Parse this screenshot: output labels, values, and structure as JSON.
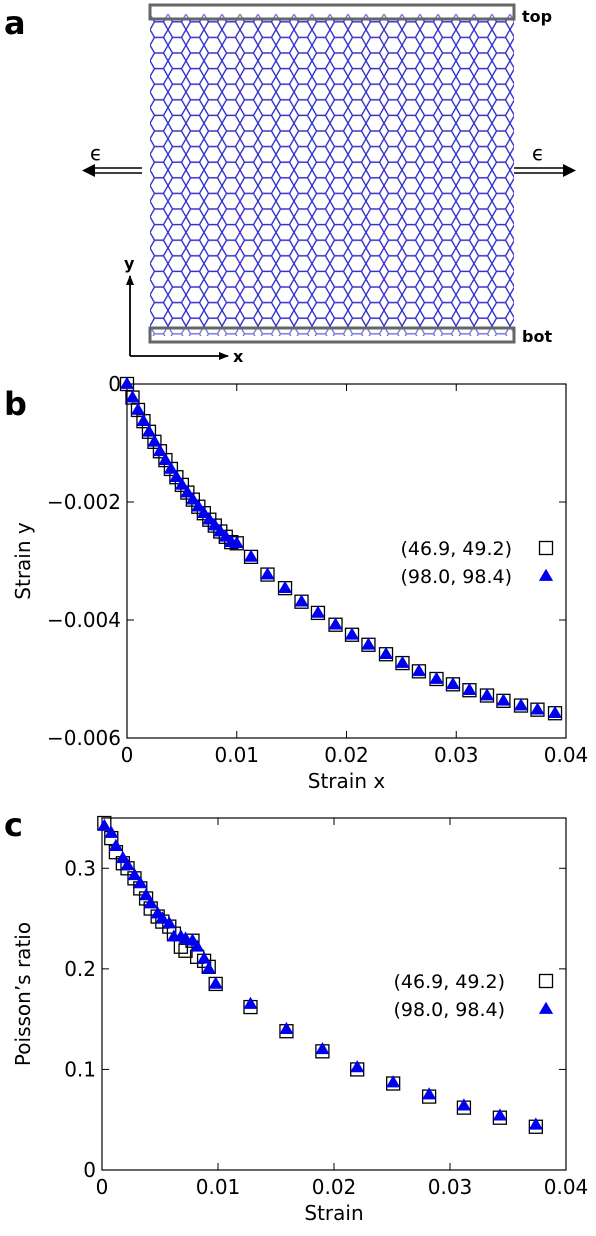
{
  "panels": {
    "a": {
      "letter": "a",
      "top_label": "top",
      "bot_label": "bot",
      "strain_symbol": "ϵ",
      "axis_x": "x",
      "axis_y": "y",
      "colors": {
        "lattice": "#3333cc",
        "plate": "#666666"
      }
    },
    "b": {
      "letter": "b"
    },
    "c": {
      "letter": "c"
    }
  },
  "chart_data": [
    {
      "type": "scatter",
      "panel": "b",
      "xlabel": "Strain x",
      "ylabel": "Strain y",
      "xlim": [
        0,
        0.04
      ],
      "ylim": [
        -0.006,
        0
      ],
      "xticks": [
        0,
        0.01,
        0.02,
        0.03,
        0.04
      ],
      "xtick_labels": [
        "0",
        "0.01",
        "0.02",
        "0.03",
        "0.04"
      ],
      "yticks": [
        0,
        -0.002,
        -0.004,
        -0.006
      ],
      "ytick_labels": [
        "0",
        "−0.002",
        "−0.004",
        "−0.006"
      ],
      "legend_position": "right",
      "series": [
        {
          "name": "(46.9, 49.2)",
          "marker": "open-square",
          "color": "#000000",
          "x": [
            0,
            0.0005,
            0.001,
            0.0015,
            0.002,
            0.0025,
            0.003,
            0.0035,
            0.004,
            0.0045,
            0.005,
            0.0055,
            0.006,
            0.0065,
            0.007,
            0.0075,
            0.008,
            0.0085,
            0.009,
            0.0095,
            0.01,
            0.0113,
            0.0128,
            0.0144,
            0.0159,
            0.0174,
            0.019,
            0.0205,
            0.022,
            0.0236,
            0.0251,
            0.0266,
            0.0282,
            0.0297,
            0.0312,
            0.0328,
            0.0343,
            0.0359,
            0.0374,
            0.039
          ],
          "y": [
            0,
            -0.00023,
            -0.00044,
            -0.00063,
            -0.00081,
            -0.00098,
            -0.00114,
            -0.00129,
            -0.00144,
            -0.00158,
            -0.00171,
            -0.00184,
            -0.00196,
            -0.00208,
            -0.00219,
            -0.0023,
            -0.0024,
            -0.0025,
            -0.00259,
            -0.00268,
            -0.0027,
            -0.00293,
            -0.00323,
            -0.00346,
            -0.00369,
            -0.00388,
            -0.00408,
            -0.00425,
            -0.00442,
            -0.00458,
            -0.00473,
            -0.00487,
            -0.005,
            -0.00509,
            -0.00519,
            -0.00528,
            -0.00537,
            -0.00545,
            -0.00552,
            -0.00558
          ]
        },
        {
          "name": "(98.0, 98.4)",
          "marker": "filled-triangle",
          "color": "#0000ee",
          "x": [
            0,
            0.0005,
            0.001,
            0.0015,
            0.002,
            0.0025,
            0.003,
            0.0035,
            0.004,
            0.0045,
            0.005,
            0.0055,
            0.006,
            0.0065,
            0.007,
            0.0075,
            0.008,
            0.0085,
            0.009,
            0.0095,
            0.01,
            0.0113,
            0.0128,
            0.0144,
            0.0159,
            0.0174,
            0.019,
            0.0205,
            0.022,
            0.0236,
            0.0251,
            0.0266,
            0.0282,
            0.0297,
            0.0312,
            0.0328,
            0.0343,
            0.0359,
            0.0374,
            0.039
          ],
          "y": [
            0,
            -0.00023,
            -0.00044,
            -0.00063,
            -0.00081,
            -0.00098,
            -0.00114,
            -0.00129,
            -0.00144,
            -0.00158,
            -0.00171,
            -0.00184,
            -0.00196,
            -0.00208,
            -0.00219,
            -0.0023,
            -0.0024,
            -0.0025,
            -0.00259,
            -0.00268,
            -0.0027,
            -0.00293,
            -0.00323,
            -0.00346,
            -0.00369,
            -0.00388,
            -0.00408,
            -0.00425,
            -0.00442,
            -0.00458,
            -0.00473,
            -0.00487,
            -0.005,
            -0.00509,
            -0.00519,
            -0.00528,
            -0.00537,
            -0.00545,
            -0.00552,
            -0.00558
          ]
        }
      ]
    },
    {
      "type": "scatter",
      "panel": "c",
      "xlabel": "Strain",
      "ylabel": "Poisson’s ratio",
      "xlim": [
        0,
        0.04
      ],
      "ylim": [
        0,
        0.35
      ],
      "xticks": [
        0,
        0.01,
        0.02,
        0.03,
        0.04
      ],
      "xtick_labels": [
        "0",
        "0.01",
        "0.02",
        "0.03",
        "0.04"
      ],
      "yticks": [
        0,
        0.1,
        0.2,
        0.3
      ],
      "ytick_labels": [
        "0",
        "0.1",
        "0.2",
        "0.3"
      ],
      "legend_position": "right",
      "series": [
        {
          "name": "(46.9, 49.2)",
          "marker": "open-square",
          "color": "#000000",
          "x": [
            0.0002,
            0.0008,
            0.0012,
            0.0018,
            0.0022,
            0.0028,
            0.0033,
            0.0038,
            0.0042,
            0.0048,
            0.0052,
            0.0058,
            0.0062,
            0.0068,
            0.0072,
            0.0078,
            0.0082,
            0.0088,
            0.0092,
            0.0098,
            0.0128,
            0.0159,
            0.019,
            0.022,
            0.0251,
            0.0282,
            0.0312,
            0.0343,
            0.0374
          ],
          "y": [
            0.345,
            0.33,
            0.316,
            0.305,
            0.3,
            0.29,
            0.28,
            0.27,
            0.26,
            0.252,
            0.247,
            0.242,
            0.235,
            0.222,
            0.218,
            0.228,
            0.212,
            0.208,
            0.202,
            0.185,
            0.162,
            0.138,
            0.118,
            0.1,
            0.086,
            0.073,
            0.062,
            0.052,
            0.043
          ]
        },
        {
          "name": "(98.0, 98.4)",
          "marker": "filled-triangle",
          "color": "#0000ee",
          "x": [
            0.0002,
            0.0008,
            0.0012,
            0.0018,
            0.0022,
            0.0028,
            0.0033,
            0.0038,
            0.0042,
            0.0048,
            0.0052,
            0.0058,
            0.0062,
            0.0068,
            0.0072,
            0.0078,
            0.0082,
            0.0088,
            0.0092,
            0.0098,
            0.0128,
            0.0159,
            0.019,
            0.022,
            0.0251,
            0.0282,
            0.0312,
            0.0343,
            0.0374
          ],
          "y": [
            0.342,
            0.335,
            0.322,
            0.31,
            0.303,
            0.293,
            0.285,
            0.273,
            0.265,
            0.255,
            0.25,
            0.245,
            0.232,
            0.232,
            0.23,
            0.228,
            0.222,
            0.21,
            0.2,
            0.185,
            0.165,
            0.14,
            0.12,
            0.102,
            0.087,
            0.075,
            0.064,
            0.054,
            0.045
          ]
        }
      ]
    }
  ]
}
